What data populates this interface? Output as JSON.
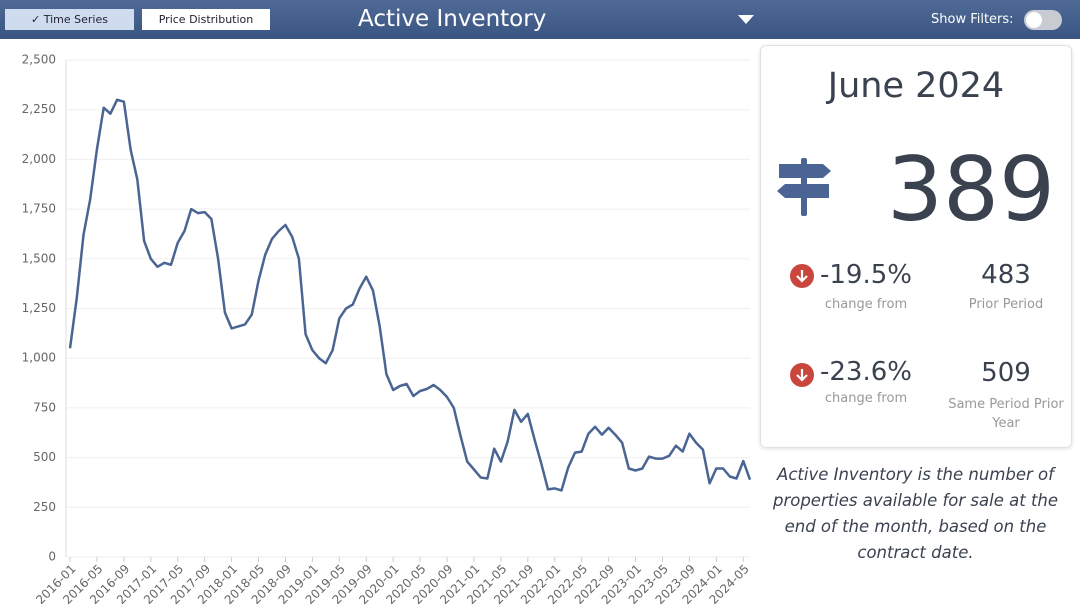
{
  "header": {
    "tabs": [
      "Time Series",
      "Price Distribution"
    ],
    "title": "Active Inventory",
    "filter_label": "Show Filters:"
  },
  "chart_data": {
    "type": "line",
    "color": "#4a6593",
    "grid": true,
    "categories": [
      "2016-01",
      null,
      null,
      null,
      "2016-05",
      null,
      null,
      null,
      "2016-09",
      null,
      null,
      null,
      "2017-01",
      null,
      null,
      null,
      "2017-05",
      null,
      null,
      null,
      "2017-09",
      null,
      null,
      null,
      "2018-01",
      null,
      null,
      null,
      "2018-05",
      null,
      null,
      null,
      "2018-09",
      null,
      null,
      null,
      "2019-01",
      null,
      null,
      null,
      "2019-05",
      null,
      null,
      null,
      "2019-09",
      null,
      null,
      null,
      "2020-01",
      null,
      null,
      null,
      "2020-05",
      null,
      null,
      null,
      "2020-09",
      null,
      null,
      null,
      "2021-01",
      null,
      null,
      null,
      "2021-05",
      null,
      null,
      null,
      "2021-09",
      null,
      null,
      null,
      "2022-01",
      null,
      null,
      null,
      "2022-05",
      null,
      null,
      null,
      "2022-09",
      null,
      null,
      null,
      "2023-01",
      null,
      null,
      null,
      "2023-05",
      null,
      null,
      null,
      "2023-09",
      null,
      null,
      null,
      "2024-01",
      null,
      null,
      null,
      "2024-05",
      null
    ],
    "values": [
      1050,
      1300,
      1620,
      1800,
      2050,
      2260,
      2230,
      2300,
      2290,
      2050,
      1900,
      1590,
      1500,
      1460,
      1480,
      1470,
      1580,
      1640,
      1750,
      1730,
      1735,
      1700,
      1500,
      1230,
      1150,
      1160,
      1170,
      1220,
      1390,
      1520,
      1600,
      1640,
      1670,
      1610,
      1500,
      1120,
      1040,
      1000,
      975,
      1040,
      1200,
      1250,
      1270,
      1350,
      1410,
      1340,
      1160,
      920,
      840,
      860,
      870,
      810,
      835,
      845,
      865,
      840,
      805,
      750,
      610,
      480,
      440,
      400,
      395,
      545,
      480,
      580,
      740,
      680,
      720,
      590,
      470,
      340,
      345,
      335,
      450,
      525,
      530,
      620,
      655,
      615,
      650,
      615,
      575,
      445,
      435,
      445,
      505,
      495,
      495,
      509,
      560,
      530,
      620,
      575,
      540,
      370,
      445,
      445,
      405,
      395,
      483,
      389
    ],
    "ylim": [
      0,
      2500
    ],
    "yticks": [
      0,
      250,
      500,
      750,
      {
        "value": 1000,
        "label": "1,000"
      },
      {
        "value": 1250,
        "label": "1,250"
      },
      {
        "value": 1500,
        "label": "1,500"
      },
      {
        "value": 1750,
        "label": "1,750"
      },
      {
        "value": 2000,
        "label": "2,000"
      },
      {
        "value": 2250,
        "label": "2,250"
      },
      {
        "value": 2500,
        "label": "2,500"
      }
    ]
  },
  "kpi": {
    "period": "June 2024",
    "value": 389,
    "changes": [
      {
        "pct": "-19.5%",
        "caption": "change from",
        "ref": 483,
        "ref_label": "Prior Period"
      },
      {
        "pct": "-23.6%",
        "caption": "change from",
        "ref": 509,
        "ref_label": "Same Period Prior Year"
      }
    ]
  },
  "description": "Active Inventory is the number of properties available for sale at the end of the month, based on the contract date."
}
